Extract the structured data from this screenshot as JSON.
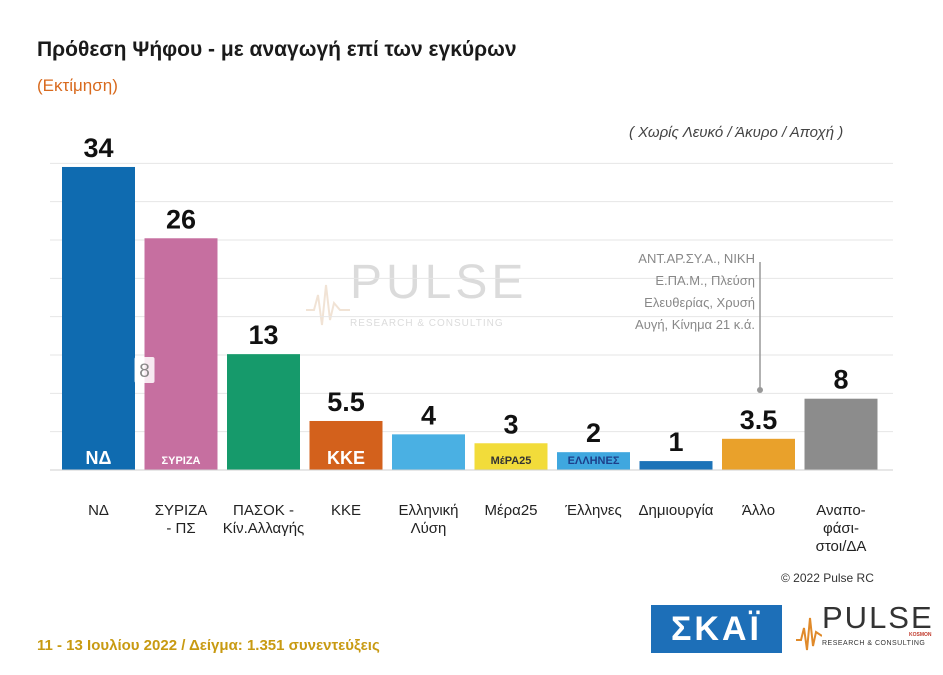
{
  "header": {
    "title": "Πρόθεση Ψήφου - με αναγωγή επί των εγκύρων",
    "subtitle": "(Εκτίμηση)",
    "note": "( Χωρίς Λευκό / Άκυρο / Αποχή )"
  },
  "other_note": [
    "ΑΝΤ.ΑΡ.ΣΥ.Α., ΝΙΚΗ",
    "Ε.ΠΑ.Μ., Πλεύση",
    "Ελευθερίας, Χρυσή",
    "Αυγή, Κίνημα 21   κ.ά."
  ],
  "colors": {
    "nd": "#0f6bb0",
    "syriza": "#c66fa0",
    "pasok": "#169a6b",
    "kke": "#d3611c",
    "ellisi": "#4ab0e3",
    "mera25": "#f2dc3a",
    "ellines": "#3fa7df",
    "dimiourgia": "#1c73b8",
    "allo": "#e9a12b",
    "undecided": "#8c8c8c"
  },
  "chart_data": {
    "type": "bar",
    "categories": [
      "ΝΔ",
      "ΣΥΡΙΖΑ - ΠΣ",
      "ΠΑΣΟΚ - Κίν.Αλλαγής",
      "ΚΚΕ",
      "Ελληνική Λύση",
      "Μέρα25",
      "Έλληνες",
      "Δημιουργία",
      "Άλλο",
      "Αναπο- φάσι- στοι/ΔΑ"
    ],
    "category_lines": [
      [
        "ΝΔ"
      ],
      [
        "ΣΥΡΙΖΑ",
        "- ΠΣ"
      ],
      [
        "ΠΑΣΟΚ -",
        "Κίν.Αλλαγής"
      ],
      [
        "ΚΚΕ"
      ],
      [
        "Ελληνική",
        "Λύση"
      ],
      [
        "Μέρα25"
      ],
      [
        "Έλληνες"
      ],
      [
        "Δημιουργία"
      ],
      [
        "Άλλο"
      ],
      [
        "Αναπο-",
        "φάσι-",
        "στοι/ΔΑ"
      ]
    ],
    "values": [
      34,
      26,
      13,
      5.5,
      4,
      3,
      2,
      1,
      3.5,
      8
    ],
    "value_labels": [
      "34",
      "26",
      "13",
      "5.5",
      "4",
      "3",
      "2",
      "1",
      "3.5",
      "8"
    ],
    "inner_labels": [
      "",
      "8",
      "",
      "",
      "",
      "",
      "",
      "",
      "",
      ""
    ],
    "party_logos": [
      "ΝΔ",
      "ΣΥΡΙΖΑ",
      "",
      "ΚΚΕ",
      "",
      "ΜέΡΑ25",
      "ΕΛΛΗΝΕΣ",
      "",
      "",
      ""
    ],
    "ylim": [
      0,
      36
    ],
    "grid": true
  },
  "footer": {
    "copyright": "© 2022 Pulse RC",
    "date_sample": "11 - 13  Ιουλίου  2022  /  Δείγμα:  1.351 συνεντεύξεις",
    "skai": "ΣΚΑΪ",
    "pulse": "PULSE",
    "pulse_sub": "RESEARCH & CONSULTING",
    "pulse_kosmon": "KOSMON"
  }
}
